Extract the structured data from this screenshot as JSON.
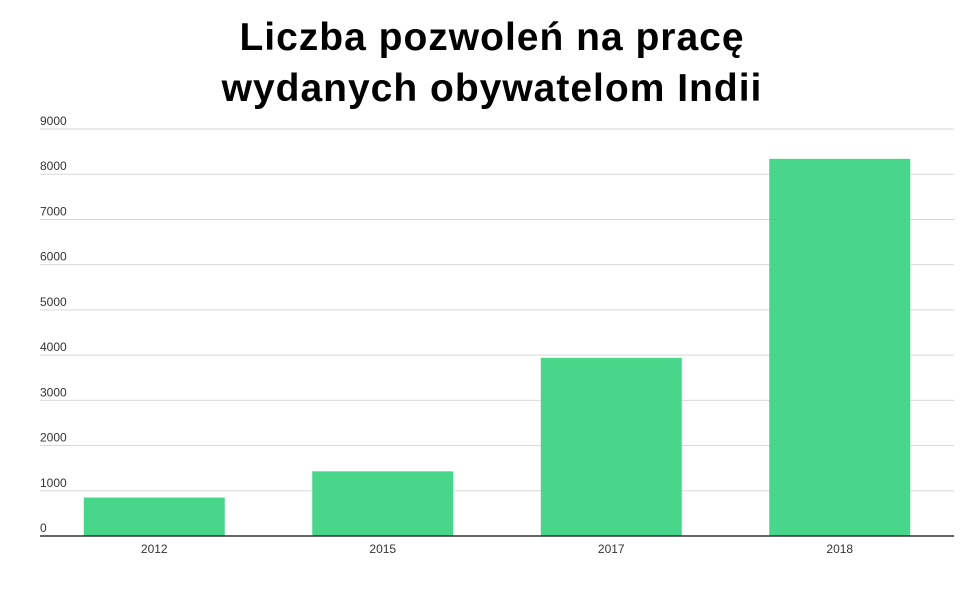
{
  "chart_data": {
    "type": "bar",
    "title_lines": [
      "Liczba pozwoleń na pracę",
      "wydanych obywatelom Indii"
    ],
    "categories": [
      "2012",
      "2015",
      "2017",
      "2018"
    ],
    "values": [
      850,
      1430,
      3940,
      8340
    ],
    "ylim": [
      0,
      9000
    ],
    "yticks": [
      "0",
      "1000",
      "2000",
      "3000",
      "4000",
      "5000",
      "6000",
      "7000",
      "8000",
      "9000"
    ],
    "xlabel": "",
    "ylabel": "",
    "grid": true,
    "legend": "none",
    "bar_color": "#48d68a",
    "grid_color": "#d9d9d9",
    "axis_color": "#333333"
  }
}
